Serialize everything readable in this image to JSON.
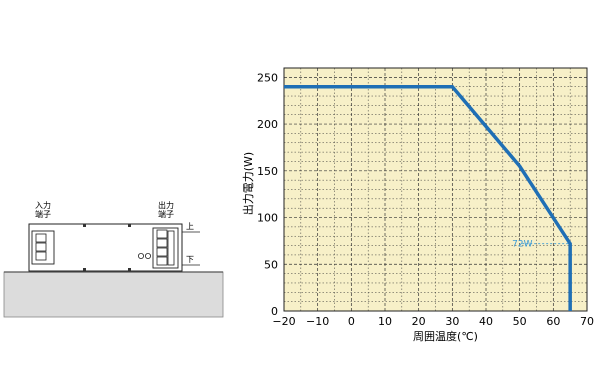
{
  "device": {
    "input_label": [
      "入力",
      "端子"
    ],
    "output_label": [
      "出力",
      "端子"
    ],
    "top_label": "上",
    "bottom_label": "下"
  },
  "chart_data": {
    "type": "line",
    "title": "",
    "xlabel": "周囲温度(℃)",
    "ylabel": "出力電力(W)",
    "xlim": [
      -20,
      70
    ],
    "ylim": [
      0,
      260
    ],
    "xticks": [
      -20,
      -10,
      0,
      10,
      20,
      30,
      40,
      50,
      60,
      70
    ],
    "yticks": [
      0,
      50,
      100,
      150,
      200,
      250
    ],
    "grid": true,
    "background_color": "#f7f0c8",
    "series": [
      {
        "color": "#1f6fb5",
        "x": [
          -20,
          30,
          50,
          65,
          65
        ],
        "y": [
          240,
          240,
          155,
          72,
          0
        ]
      }
    ],
    "annotations": [
      {
        "text": "72W",
        "x": 65,
        "y": 72,
        "color": "#3a9ad6"
      }
    ]
  }
}
